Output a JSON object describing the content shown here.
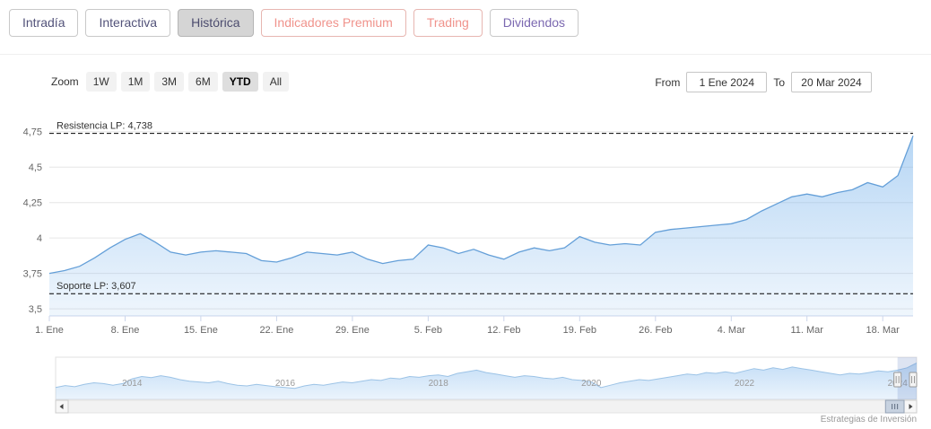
{
  "tabs": [
    {
      "label": "Intradía",
      "selected": false,
      "accent": "navy"
    },
    {
      "label": "Interactiva",
      "selected": false,
      "accent": "navy"
    },
    {
      "label": "Histórica",
      "selected": true,
      "accent": "navy"
    },
    {
      "label": "Indicadores Premium",
      "selected": false,
      "accent": "salmon"
    },
    {
      "label": "Trading",
      "selected": false,
      "accent": "salmon"
    },
    {
      "label": "Dividendos",
      "selected": false,
      "accent": "purple"
    }
  ],
  "toolbar": {
    "zoom_label": "Zoom",
    "zoom_buttons": [
      "1W",
      "1M",
      "3M",
      "6M",
      "YTD",
      "All"
    ],
    "zoom_selected": "YTD",
    "from_label": "From",
    "from_value": "1 Ene 2024",
    "to_label": "To",
    "to_value": "20 Mar 2024"
  },
  "colors": {
    "series_line": "#649fd8",
    "series_fill": "#7cb5ec",
    "tab_salmon": "#f0938c",
    "tab_purple": "#7b68b0",
    "selected_tab_bg": "#d5d5d5",
    "grid": "#e6e6e6",
    "axis": "#ccd6eb"
  },
  "chart_data": [
    {
      "name": "main",
      "type": "area",
      "title": "",
      "xlabel": "",
      "ylabel": "",
      "grid": true,
      "legend": false,
      "ylim": [
        3.45,
        4.9
      ],
      "y_ticks": [
        {
          "v": 4.75,
          "label": "4,75"
        },
        {
          "v": 4.5,
          "label": "4,5"
        },
        {
          "v": 4.25,
          "label": "4,25"
        },
        {
          "v": 4.0,
          "label": "4"
        },
        {
          "v": 3.75,
          "label": "3,75"
        },
        {
          "v": 3.5,
          "label": "3,5"
        }
      ],
      "x_labels": [
        "1. Ene",
        "8. Ene",
        "15. Ene",
        "22. Ene",
        "29. Ene",
        "5. Feb",
        "12. Feb",
        "19. Feb",
        "26. Feb",
        "4. Mar",
        "11. Mar",
        "18. Mar"
      ],
      "x_label_indices": [
        0,
        5,
        10,
        15,
        20,
        25,
        30,
        35,
        40,
        45,
        50,
        55
      ],
      "values": [
        3.75,
        3.77,
        3.8,
        3.86,
        3.93,
        3.99,
        4.03,
        3.97,
        3.9,
        3.88,
        3.9,
        3.91,
        3.9,
        3.89,
        3.84,
        3.83,
        3.86,
        3.9,
        3.89,
        3.88,
        3.9,
        3.85,
        3.82,
        3.84,
        3.85,
        3.95,
        3.93,
        3.89,
        3.92,
        3.88,
        3.85,
        3.9,
        3.93,
        3.91,
        3.93,
        4.01,
        3.97,
        3.95,
        3.96,
        3.95,
        4.04,
        4.06,
        4.07,
        4.08,
        4.09,
        4.1,
        4.13,
        4.19,
        4.24,
        4.29,
        4.31,
        4.29,
        4.32,
        4.34,
        4.39,
        4.36,
        4.44,
        4.72
      ],
      "plot_lines": [
        {
          "value": 4.738,
          "label": "Resistencia LP: 4,738"
        },
        {
          "value": 3.607,
          "label": "Soporte LP: 3,607"
        }
      ]
    },
    {
      "name": "navigator",
      "type": "area",
      "ylim": [
        0,
        1
      ],
      "x_labels": [
        "2014",
        "2016",
        "2018",
        "2020",
        "2022",
        "2024"
      ],
      "x_label_indices": [
        8,
        24,
        40,
        56,
        72,
        88
      ],
      "values": [
        0.3,
        0.35,
        0.32,
        0.38,
        0.42,
        0.4,
        0.36,
        0.4,
        0.52,
        0.58,
        0.55,
        0.6,
        0.56,
        0.5,
        0.46,
        0.44,
        0.42,
        0.46,
        0.4,
        0.36,
        0.34,
        0.38,
        0.35,
        0.32,
        0.3,
        0.28,
        0.34,
        0.38,
        0.36,
        0.4,
        0.44,
        0.42,
        0.46,
        0.5,
        0.48,
        0.54,
        0.52,
        0.58,
        0.56,
        0.6,
        0.62,
        0.58,
        0.66,
        0.7,
        0.74,
        0.68,
        0.64,
        0.6,
        0.56,
        0.6,
        0.58,
        0.54,
        0.52,
        0.56,
        0.5,
        0.48,
        0.44,
        0.3,
        0.36,
        0.42,
        0.46,
        0.5,
        0.48,
        0.52,
        0.56,
        0.6,
        0.64,
        0.62,
        0.68,
        0.66,
        0.7,
        0.66,
        0.72,
        0.78,
        0.74,
        0.8,
        0.76,
        0.82,
        0.78,
        0.74,
        0.7,
        0.66,
        0.62,
        0.66,
        0.64,
        0.68,
        0.72,
        0.7,
        0.74,
        0.8,
        0.92
      ],
      "selection": {
        "from_index": 88,
        "to_index": 90
      }
    }
  ],
  "credit": "Estrategias de Inversión"
}
